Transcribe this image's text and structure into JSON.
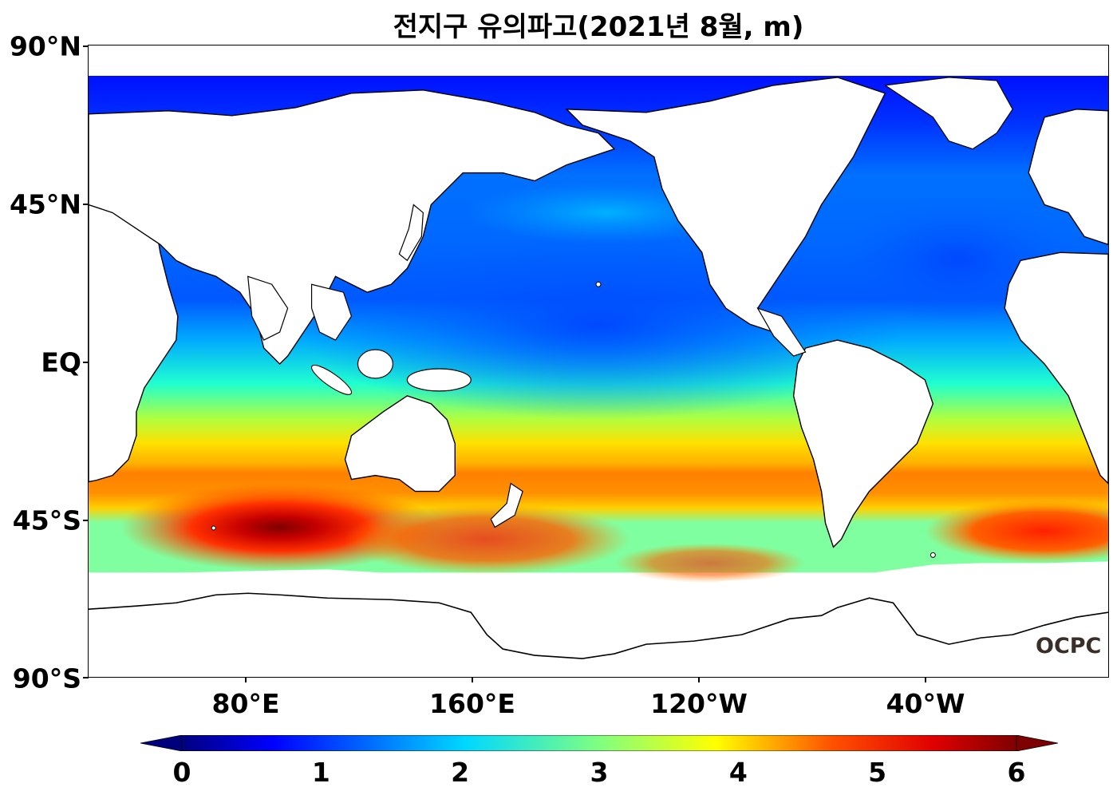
{
  "title": "전지구 유의파고(2021년 8월, m)",
  "watermark": "OCPC",
  "axes": {
    "lat_labels": [
      "90°N",
      "45°N",
      "EQ",
      "45°S",
      "90°S"
    ],
    "lat_values": [
      90,
      45,
      0,
      -45,
      -90
    ],
    "lon_labels": [
      "80°E",
      "160°E",
      "120°W",
      "40°W"
    ],
    "lon_values": [
      80,
      160,
      240,
      320
    ],
    "lon_range": [
      25,
      385
    ],
    "lat_range": [
      -90,
      90
    ]
  },
  "colorbar": {
    "min": 0,
    "max": 6,
    "tick_labels": [
      "0",
      "1",
      "2",
      "3",
      "4",
      "5",
      "6"
    ],
    "colormap": "jet",
    "extend": "both",
    "colors": [
      "#00007f",
      "#0000ff",
      "#0080ff",
      "#00ffff",
      "#80ff80",
      "#ffff00",
      "#ff8000",
      "#ff0000",
      "#7f0000"
    ]
  },
  "colors": {
    "land": "#ffffff",
    "coastline": "#000000",
    "ice_mask": "#ffffff"
  }
}
